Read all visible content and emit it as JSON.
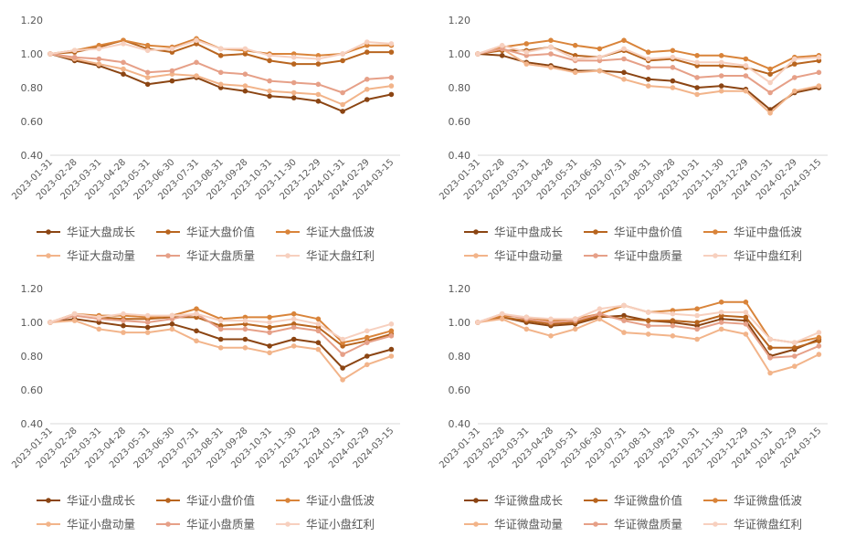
{
  "style": {
    "series_colors": [
      "#8B4513",
      "#B8651F",
      "#D9843A",
      "#F2B48A",
      "#E6A088",
      "#F7D0BF"
    ],
    "grid": false,
    "legend_placement": "bottom"
  },
  "chart_data": [
    {
      "type": "line",
      "title": "",
      "ylim": [
        0.4,
        1.2
      ],
      "yticks": [
        "0.40",
        "0.60",
        "0.80",
        "1.00",
        "1.20"
      ],
      "x": [
        "2023-01-31",
        "2023-02-28",
        "2023-03-31",
        "2023-04-28",
        "2023-05-31",
        "2023-06-30",
        "2023-07-31",
        "2023-08-31",
        "2023-09-28",
        "2023-10-31",
        "2023-11-30",
        "2023-12-29",
        "2024-01-31",
        "2024-02-29",
        "2024-03-15"
      ],
      "series": [
        {
          "name": "华证大盘成长",
          "values": [
            1.0,
            0.96,
            0.93,
            0.88,
            0.82,
            0.84,
            0.86,
            0.8,
            0.78,
            0.75,
            0.74,
            0.72,
            0.66,
            0.73,
            0.76
          ]
        },
        {
          "name": "华证大盘价值",
          "values": [
            1.0,
            1.01,
            1.04,
            1.08,
            1.03,
            1.01,
            1.06,
            0.99,
            1.0,
            0.96,
            0.94,
            0.94,
            0.96,
            1.01,
            1.01
          ]
        },
        {
          "name": "华证大盘低波",
          "values": [
            1.0,
            1.02,
            1.05,
            1.08,
            1.05,
            1.04,
            1.09,
            1.03,
            1.02,
            1.0,
            1.0,
            0.99,
            1.0,
            1.05,
            1.05
          ]
        },
        {
          "name": "华证大盘动量",
          "values": [
            1.0,
            0.97,
            0.94,
            0.91,
            0.86,
            0.88,
            0.87,
            0.82,
            0.81,
            0.78,
            0.77,
            0.76,
            0.7,
            0.79,
            0.81
          ]
        },
        {
          "name": "华证大盘质量",
          "values": [
            1.0,
            0.98,
            0.97,
            0.95,
            0.89,
            0.9,
            0.95,
            0.89,
            0.88,
            0.84,
            0.83,
            0.82,
            0.77,
            0.85,
            0.86
          ]
        },
        {
          "name": "华证大盘红利",
          "values": [
            1.0,
            1.02,
            1.03,
            1.06,
            1.02,
            1.03,
            1.08,
            1.03,
            1.03,
            0.99,
            0.98,
            0.97,
            1.0,
            1.07,
            1.06
          ]
        }
      ]
    },
    {
      "type": "line",
      "title": "",
      "ylim": [
        0.4,
        1.2
      ],
      "yticks": [
        "0.40",
        "0.60",
        "0.80",
        "1.00",
        "1.20"
      ],
      "x": [
        "2023-01-31",
        "2023-02-28",
        "2023-03-31",
        "2023-04-28",
        "2023-05-31",
        "2023-06-30",
        "2023-07-31",
        "2023-08-31",
        "2023-09-28",
        "2023-10-31",
        "2023-11-30",
        "2023-12-29",
        "2024-01-31",
        "2024-02-29",
        "2024-03-15"
      ],
      "series": [
        {
          "name": "华证中盘成长",
          "values": [
            1.0,
            0.99,
            0.95,
            0.93,
            0.9,
            0.9,
            0.89,
            0.85,
            0.84,
            0.8,
            0.81,
            0.79,
            0.67,
            0.77,
            0.8
          ]
        },
        {
          "name": "华证中盘价值",
          "values": [
            1.0,
            1.02,
            1.02,
            1.04,
            0.99,
            0.98,
            1.02,
            0.96,
            0.97,
            0.93,
            0.93,
            0.92,
            0.88,
            0.94,
            0.96
          ]
        },
        {
          "name": "华证中盘低波",
          "values": [
            1.0,
            1.04,
            1.06,
            1.08,
            1.05,
            1.03,
            1.08,
            1.01,
            1.02,
            0.99,
            0.99,
            0.97,
            0.91,
            0.98,
            0.99
          ]
        },
        {
          "name": "华证中盘动量",
          "values": [
            1.0,
            1.03,
            0.94,
            0.92,
            0.89,
            0.9,
            0.85,
            0.81,
            0.8,
            0.76,
            0.78,
            0.78,
            0.65,
            0.78,
            0.81
          ]
        },
        {
          "name": "华证中盘质量",
          "values": [
            1.0,
            1.03,
            0.99,
            1.0,
            0.96,
            0.96,
            0.97,
            0.92,
            0.92,
            0.86,
            0.87,
            0.87,
            0.77,
            0.86,
            0.89
          ]
        },
        {
          "name": "华证中盘红利",
          "values": [
            1.0,
            1.05,
            1.01,
            1.04,
            0.97,
            0.98,
            1.03,
            0.97,
            0.98,
            0.95,
            0.95,
            0.93,
            0.83,
            0.97,
            0.98
          ]
        }
      ]
    },
    {
      "type": "line",
      "title": "",
      "ylim": [
        0.4,
        1.2
      ],
      "yticks": [
        "0.40",
        "0.60",
        "0.80",
        "1.00",
        "1.20"
      ],
      "x": [
        "2023-01-31",
        "2023-02-28",
        "2023-03-31",
        "2023-04-28",
        "2023-05-31",
        "2023-06-30",
        "2023-07-31",
        "2023-08-31",
        "2023-09-28",
        "2023-10-31",
        "2023-11-30",
        "2023-12-29",
        "2024-01-31",
        "2024-02-29",
        "2024-03-15"
      ],
      "series": [
        {
          "name": "华证小盘成长",
          "values": [
            1.0,
            1.02,
            1.0,
            0.98,
            0.97,
            0.99,
            0.95,
            0.9,
            0.9,
            0.86,
            0.9,
            0.88,
            0.73,
            0.8,
            0.84
          ]
        },
        {
          "name": "华证小盘价值",
          "values": [
            1.0,
            1.04,
            1.03,
            1.02,
            1.02,
            1.03,
            1.03,
            0.98,
            0.99,
            0.97,
            0.99,
            0.97,
            0.86,
            0.89,
            0.93
          ]
        },
        {
          "name": "华证小盘低波",
          "values": [
            1.0,
            1.05,
            1.04,
            1.04,
            1.03,
            1.04,
            1.08,
            1.02,
            1.03,
            1.03,
            1.05,
            1.02,
            0.88,
            0.91,
            0.95
          ]
        },
        {
          "name": "华证小盘动量",
          "values": [
            1.0,
            1.01,
            0.96,
            0.94,
            0.94,
            0.96,
            0.89,
            0.85,
            0.85,
            0.82,
            0.86,
            0.84,
            0.66,
            0.75,
            0.8
          ]
        },
        {
          "name": "华证小盘质量",
          "values": [
            1.0,
            1.04,
            1.02,
            1.01,
            1.0,
            1.02,
            1.05,
            0.96,
            0.96,
            0.94,
            0.97,
            0.95,
            0.81,
            0.88,
            0.92
          ]
        },
        {
          "name": "华证小盘红利",
          "values": [
            1.0,
            1.05,
            1.03,
            1.05,
            1.04,
            1.04,
            1.05,
            1.01,
            1.01,
            1.0,
            1.02,
            0.99,
            0.9,
            0.95,
            0.99
          ]
        }
      ]
    },
    {
      "type": "line",
      "title": "",
      "ylim": [
        0.4,
        1.2
      ],
      "yticks": [
        "0.40",
        "0.60",
        "0.80",
        "1.00",
        "1.20"
      ],
      "x": [
        "2023-01-31",
        "2023-02-28",
        "2023-03-31",
        "2023-04-28",
        "2023-05-31",
        "2023-06-30",
        "2023-07-31",
        "2023-08-31",
        "2023-09-28",
        "2023-10-31",
        "2023-11-30",
        "2023-12-29",
        "2024-01-31",
        "2024-02-29",
        "2024-03-15"
      ],
      "series": [
        {
          "name": "华证微盘成长",
          "values": [
            1.0,
            1.03,
            1.0,
            0.98,
            0.99,
            1.03,
            1.04,
            1.01,
            1.0,
            0.98,
            1.02,
            1.01,
            0.8,
            0.84,
            0.9
          ]
        },
        {
          "name": "华证微盘价值",
          "values": [
            1.0,
            1.03,
            1.01,
            0.99,
            1.0,
            1.04,
            1.02,
            1.01,
            1.01,
            1.0,
            1.04,
            1.03,
            0.85,
            0.85,
            0.89
          ]
        },
        {
          "name": "华证微盘低波",
          "values": [
            1.0,
            1.04,
            1.03,
            1.01,
            1.02,
            1.05,
            1.1,
            1.06,
            1.07,
            1.08,
            1.12,
            1.12,
            0.9,
            0.88,
            0.91
          ]
        },
        {
          "name": "华证微盘动量",
          "values": [
            1.0,
            1.02,
            0.96,
            0.92,
            0.96,
            1.02,
            0.94,
            0.93,
            0.92,
            0.9,
            0.96,
            0.93,
            0.7,
            0.74,
            0.81
          ]
        },
        {
          "name": "华证微盘质量",
          "values": [
            1.0,
            1.05,
            1.02,
            1.0,
            1.01,
            1.05,
            1.01,
            0.98,
            0.98,
            0.96,
            1.0,
            0.99,
            0.79,
            0.8,
            0.86
          ]
        },
        {
          "name": "华证微盘红利",
          "values": [
            1.0,
            1.05,
            1.03,
            1.02,
            1.02,
            1.08,
            1.1,
            1.06,
            1.05,
            1.04,
            1.06,
            1.06,
            0.9,
            0.88,
            0.94
          ]
        }
      ]
    }
  ]
}
